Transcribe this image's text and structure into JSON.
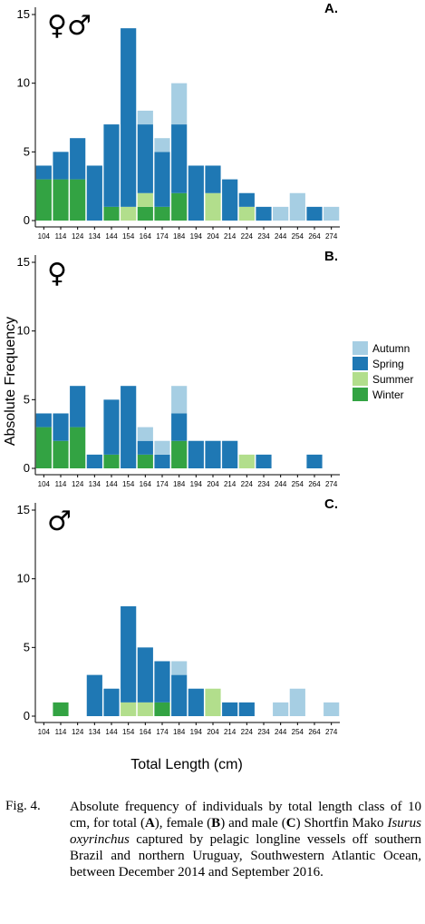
{
  "chart_data": {
    "type": "bar",
    "stacked": true,
    "categories": [
      "104",
      "114",
      "124",
      "134",
      "144",
      "154",
      "164",
      "174",
      "184",
      "194",
      "204",
      "214",
      "224",
      "234",
      "244",
      "254",
      "264",
      "274"
    ],
    "ylim": [
      0,
      15
    ],
    "yticks": [
      0,
      5,
      10,
      15
    ],
    "ylabel": "Absolute Frequency",
    "xlabel": "Total Length (cm)",
    "grid": false,
    "legend_position": "right",
    "series_colors": {
      "Winter": "#33a343",
      "Summer": "#b2de8c",
      "Spring": "#1f78b4",
      "Autumn": "#a6cee3"
    },
    "legend": [
      "Autumn",
      "Spring",
      "Summer",
      "Winter"
    ],
    "panels": [
      {
        "tag": "A.",
        "symbol": "♀♂",
        "series": [
          {
            "name": "Winter",
            "values": [
              3,
              3,
              3,
              0,
              1,
              0,
              1,
              1,
              2,
              0,
              0,
              0,
              0,
              0,
              0,
              0,
              0,
              0
            ]
          },
          {
            "name": "Summer",
            "values": [
              0,
              0,
              0,
              0,
              0,
              1,
              1,
              0,
              0,
              0,
              2,
              0,
              1,
              0,
              0,
              0,
              0,
              0
            ]
          },
          {
            "name": "Spring",
            "values": [
              1,
              2,
              3,
              4,
              6,
              13,
              5,
              4,
              5,
              4,
              2,
              3,
              1,
              1,
              0,
              0,
              1,
              0
            ]
          },
          {
            "name": "Autumn",
            "values": [
              0,
              0,
              0,
              0,
              0,
              0,
              1,
              1,
              3,
              0,
              0,
              0,
              0,
              0,
              1,
              2,
              0,
              1
            ]
          }
        ]
      },
      {
        "tag": "B.",
        "symbol": "♀",
        "series": [
          {
            "name": "Winter",
            "values": [
              3,
              2,
              3,
              0,
              1,
              0,
              1,
              0,
              2,
              0,
              0,
              0,
              0,
              0,
              0,
              0,
              0,
              0
            ]
          },
          {
            "name": "Summer",
            "values": [
              0,
              0,
              0,
              0,
              0,
              0,
              0,
              0,
              0,
              0,
              0,
              0,
              1,
              0,
              0,
              0,
              0,
              0
            ]
          },
          {
            "name": "Spring",
            "values": [
              1,
              2,
              3,
              1,
              4,
              6,
              1,
              1,
              2,
              2,
              2,
              2,
              0,
              1,
              0,
              0,
              1,
              0
            ]
          },
          {
            "name": "Autumn",
            "values": [
              0,
              0,
              0,
              0,
              0,
              0,
              1,
              1,
              2,
              0,
              0,
              0,
              0,
              0,
              0,
              0,
              0,
              0
            ]
          }
        ]
      },
      {
        "tag": "C.",
        "symbol": "♂",
        "series": [
          {
            "name": "Winter",
            "values": [
              0,
              1,
              0,
              0,
              0,
              0,
              0,
              1,
              0,
              0,
              0,
              0,
              0,
              0,
              0,
              0,
              0,
              0
            ]
          },
          {
            "name": "Summer",
            "values": [
              0,
              0,
              0,
              0,
              0,
              1,
              1,
              0,
              0,
              0,
              2,
              0,
              0,
              0,
              0,
              0,
              0,
              0
            ]
          },
          {
            "name": "Spring",
            "values": [
              0,
              0,
              0,
              3,
              2,
              7,
              4,
              3,
              3,
              2,
              0,
              1,
              1,
              0,
              0,
              0,
              0,
              0
            ]
          },
          {
            "name": "Autumn",
            "values": [
              0,
              0,
              0,
              0,
              0,
              0,
              0,
              0,
              1,
              0,
              0,
              0,
              0,
              0,
              1,
              2,
              0,
              1
            ]
          }
        ]
      }
    ]
  },
  "caption": {
    "label": "Fig. 4.",
    "text_parts": [
      "Absolute frequency of individuals by total length class of 10 cm, for total (",
      "A",
      "), female (",
      "B",
      ") and male (",
      "C",
      ") Shortfin Mako ",
      "Isurus oxyrinchus",
      " captured by pelagic longline vessels off southern Brazil and northern Uruguay, Southwestern Atlantic Ocean, between December 2014 and September 2016."
    ]
  }
}
